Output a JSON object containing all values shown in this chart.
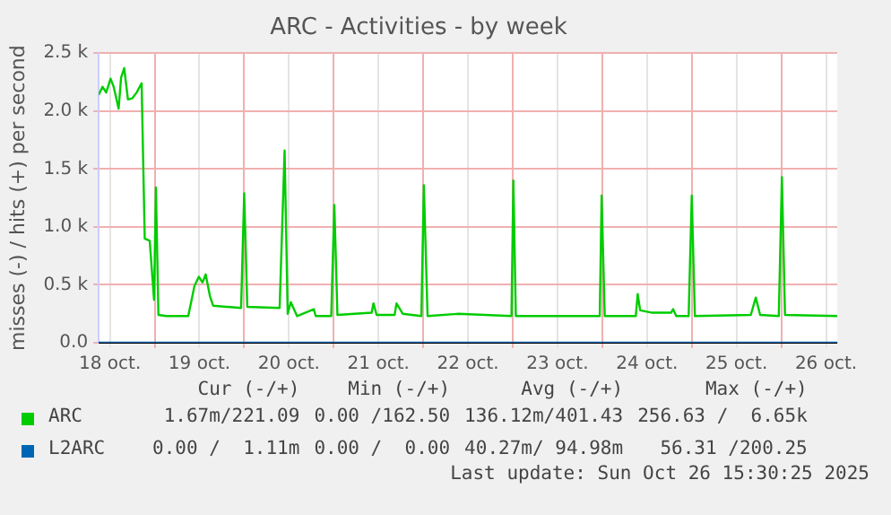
{
  "chart_data": {
    "type": "line",
    "title": "ARC - Activities - by week",
    "ylabel": "misses (-) / hits (+) per second",
    "xlim": [
      "2025-10-18T09:00",
      "2025-10-26T15:00"
    ],
    "xticks": [
      {
        "value": "2025-10-18T12:00",
        "label": "18 oct."
      },
      {
        "value": "2025-10-19T00:00",
        "label": null
      },
      {
        "value": "2025-10-19T12:00",
        "label": "19 oct."
      },
      {
        "value": "2025-10-20T00:00",
        "label": null
      },
      {
        "value": "2025-10-20T12:00",
        "label": "20 oct."
      },
      {
        "value": "2025-10-21T00:00",
        "label": null
      },
      {
        "value": "2025-10-21T12:00",
        "label": "21 oct."
      },
      {
        "value": "2025-10-22T00:00",
        "label": null
      },
      {
        "value": "2025-10-22T12:00",
        "label": "22 oct."
      },
      {
        "value": "2025-10-23T00:00",
        "label": null
      },
      {
        "value": "2025-10-23T12:00",
        "label": "23 oct."
      },
      {
        "value": "2025-10-24T00:00",
        "label": null
      },
      {
        "value": "2025-10-24T12:00",
        "label": "24 oct."
      },
      {
        "value": "2025-10-25T00:00",
        "label": null
      },
      {
        "value": "2025-10-25T12:00",
        "label": "25 oct."
      },
      {
        "value": "2025-10-26T00:00",
        "label": null
      },
      {
        "value": "2025-10-26T12:00",
        "label": "26 oct."
      }
    ],
    "ylim": [
      0,
      2500
    ],
    "yticks": [
      {
        "value": 0,
        "label": "0.0"
      },
      {
        "value": 500,
        "label": "0.5 k"
      },
      {
        "value": 1000,
        "label": "1.0 k"
      },
      {
        "value": 1500,
        "label": "1.5 k"
      },
      {
        "value": 2000,
        "label": "2.0 k"
      },
      {
        "value": 2500,
        "label": "2.5 k"
      }
    ],
    "grid": true,
    "legend": "bottom",
    "marker": "none",
    "line_style": "solid",
    "series": [
      {
        "name": "ARC",
        "color": "#00cc00",
        "x": [
          "2025-10-18T09:00",
          "2025-10-18T10:00",
          "2025-10-18T11:00",
          "2025-10-18T12:10",
          "2025-10-18T13:00",
          "2025-10-18T13:30",
          "2025-10-18T14:20",
          "2025-10-18T15:00",
          "2025-10-18T15:50",
          "2025-10-18T16:50",
          "2025-10-18T18:00",
          "2025-10-18T19:10",
          "2025-10-18T20:30",
          "2025-10-18T21:20",
          "2025-10-18T22:40",
          "2025-10-18T23:50",
          "2025-10-19T00:20",
          "2025-10-19T01:00",
          "2025-10-19T03:10",
          "2025-10-19T09:00",
          "2025-10-19T10:40",
          "2025-10-19T11:50",
          "2025-10-19T12:50",
          "2025-10-19T13:40",
          "2025-10-19T14:50",
          "2025-10-19T15:40",
          "2025-10-19T23:10",
          "2025-10-20T00:00",
          "2025-10-20T00:50",
          "2025-10-20T09:30",
          "2025-10-20T10:50",
          "2025-10-20T11:40",
          "2025-10-20T12:30",
          "2025-10-20T14:10",
          "2025-10-20T18:40",
          "2025-10-20T19:10",
          "2025-10-20T23:20",
          "2025-10-21T00:10",
          "2025-10-21T01:00",
          "2025-10-21T10:10",
          "2025-10-21T10:40",
          "2025-10-21T11:30",
          "2025-10-21T16:20",
          "2025-10-21T16:50",
          "2025-10-21T18:30",
          "2025-10-21T23:30",
          "2025-10-22T00:10",
          "2025-10-22T01:10",
          "2025-10-22T09:30",
          "2025-10-22T23:40",
          "2025-10-23T00:10",
          "2025-10-23T00:50",
          "2025-10-23T17:10",
          "2025-10-23T23:20",
          "2025-10-23T23:50",
          "2025-10-24T00:40",
          "2025-10-24T09:00",
          "2025-10-24T09:30",
          "2025-10-24T10:10",
          "2025-10-24T13:10",
          "2025-10-24T18:30",
          "2025-10-24T19:00",
          "2025-10-24T19:50",
          "2025-10-24T23:10",
          "2025-10-25T00:00",
          "2025-10-25T00:50",
          "2025-10-25T15:50",
          "2025-10-25T17:10",
          "2025-10-25T18:20",
          "2025-10-25T23:20",
          "2025-10-26T00:10",
          "2025-10-26T01:00",
          "2025-10-26T15:00"
        ],
        "values": [
          2140,
          2210,
          2160,
          2280,
          2210,
          2140,
          2020,
          2290,
          2370,
          2100,
          2110,
          2160,
          2240,
          900,
          880,
          370,
          1340,
          240,
          230,
          230,
          490,
          570,
          520,
          590,
          400,
          320,
          300,
          1290,
          310,
          300,
          1660,
          250,
          350,
          230,
          290,
          230,
          230,
          1190,
          240,
          260,
          340,
          240,
          240,
          340,
          250,
          230,
          1360,
          230,
          250,
          230,
          1400,
          230,
          230,
          230,
          1270,
          230,
          230,
          420,
          280,
          260,
          260,
          290,
          230,
          230,
          1270,
          230,
          240,
          390,
          240,
          230,
          1430,
          240,
          230
        ]
      },
      {
        "name": "L2ARC",
        "color": "#0066b3",
        "x": [
          "2025-10-18T09:00",
          "2025-10-26T15:00"
        ],
        "values": [
          0,
          0
        ]
      }
    ],
    "annotations": [
      "Cur (-/+)",
      "Min (-/+)",
      "Avg (-/+)",
      "Max (-/+)",
      "1.67m/221.09",
      "0.00 /162.50",
      "136.12m/401.43",
      "256.63 /  6.65k",
      "0.00 /  1.11m",
      "0.00 /  0.00",
      "40.27m/ 94.98m",
      "56.31 /200.25",
      "Last update: Sun Oct 26 15:30:25 2025"
    ]
  }
}
